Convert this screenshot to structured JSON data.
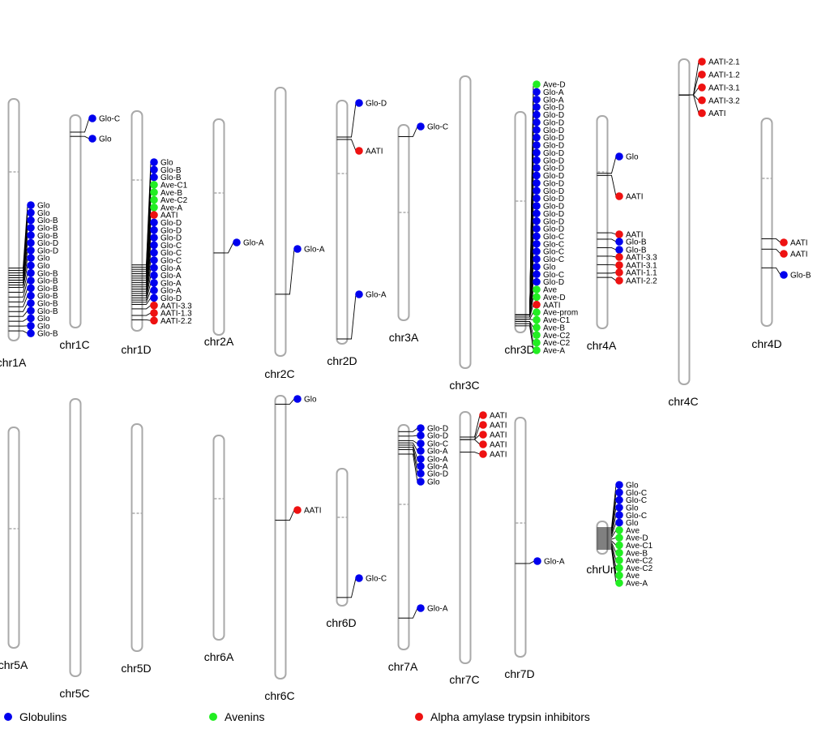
{
  "figure": {
    "palette": {
      "Glo": "#0000ee",
      "Ave": "#22ee22",
      "AATI": "#ee1111",
      "chromosome_outline": "#a9a9a9"
    },
    "legend": [
      {
        "label": "Globulins",
        "color": "#0000ee"
      },
      {
        "label": "Avenins",
        "color": "#22ee22"
      },
      {
        "label": "Alpha amylase trypsin inhibitors",
        "color": "#ee1111"
      }
    ],
    "chromosomes": [
      {
        "name": "chr1A",
        "row": 1,
        "genes": [
          [
            "Glo",
            "Glo",
            0.7
          ],
          [
            "Glo",
            "Glo",
            0.71
          ],
          [
            "Glo-B",
            "Glo",
            0.72
          ],
          [
            "Glo-B",
            "Glo",
            0.73
          ],
          [
            "Glo-B",
            "Glo",
            0.74
          ],
          [
            "Glo-D",
            "Glo",
            0.75
          ],
          [
            "Glo-D",
            "Glo",
            0.76
          ],
          [
            "Glo",
            "Glo",
            0.77
          ],
          [
            "Glo",
            "Glo",
            0.78
          ],
          [
            "Glo-B",
            "Glo",
            0.8
          ],
          [
            "Glo-B",
            "Glo",
            0.82
          ],
          [
            "Glo-B",
            "Glo",
            0.84
          ],
          [
            "Glo-B",
            "Glo",
            0.86
          ],
          [
            "Glo-B",
            "Glo",
            0.88
          ],
          [
            "Glo-B",
            "Glo",
            0.9
          ],
          [
            "Glo",
            "Glo",
            0.92
          ],
          [
            "Glo",
            "Glo",
            0.94
          ],
          [
            "Glo-B",
            "Glo",
            0.96
          ]
        ]
      },
      {
        "name": "chr1C",
        "row": 1,
        "genes": [
          [
            "Glo-C",
            "Glo",
            0.08
          ],
          [
            "Glo",
            "Glo",
            0.1
          ]
        ]
      },
      {
        "name": "chr1D",
        "row": 1,
        "genes": [
          [
            "Glo",
            "Glo",
            0.7
          ],
          [
            "Glo-B",
            "Glo",
            0.71
          ],
          [
            "Glo-B",
            "Glo",
            0.72
          ],
          [
            "Ave-C1",
            "Ave",
            0.73
          ],
          [
            "Ave-B",
            "Ave",
            0.74
          ],
          [
            "Ave-C2",
            "Ave",
            0.75
          ],
          [
            "Ave-A",
            "Ave",
            0.76
          ],
          [
            "AATI",
            "AATI",
            0.77
          ],
          [
            "Glo-D",
            "Glo",
            0.78
          ],
          [
            "Glo-D",
            "Glo",
            0.79
          ],
          [
            "Glo-D",
            "Glo",
            0.8
          ],
          [
            "Glo-C",
            "Glo",
            0.81
          ],
          [
            "Glo-C",
            "Glo",
            0.82
          ],
          [
            "Glo-C",
            "Glo",
            0.83
          ],
          [
            "Glo-A",
            "Glo",
            0.84
          ],
          [
            "Glo-A",
            "Glo",
            0.85
          ],
          [
            "Glo-A",
            "Glo",
            0.86
          ],
          [
            "Glo-A",
            "Glo",
            0.87
          ],
          [
            "Glo-D",
            "Glo",
            0.88
          ],
          [
            "AATI-3.3",
            "AATI",
            0.9
          ],
          [
            "AATI-1.3",
            "AATI",
            0.93
          ],
          [
            "AATI-2.2",
            "AATI",
            0.95
          ]
        ]
      },
      {
        "name": "chr2A",
        "row": 1,
        "genes": [
          [
            "Glo-A",
            "Glo",
            0.62
          ]
        ]
      },
      {
        "name": "chr2C",
        "row": 1,
        "genes": [
          [
            "Glo-A",
            "Glo",
            0.77
          ]
        ]
      },
      {
        "name": "chr2D",
        "row": 1,
        "genes": [
          [
            "Glo-D",
            "Glo",
            0.15
          ],
          [
            "AATI",
            "AATI",
            0.16
          ],
          [
            "Glo-A",
            "Glo",
            0.98
          ]
        ]
      },
      {
        "name": "chr3A",
        "row": 1,
        "genes": [
          [
            "Glo-C",
            "Glo",
            0.06
          ]
        ]
      },
      {
        "name": "chr3C",
        "row": 1,
        "genes": []
      },
      {
        "name": "chr3D",
        "row": 1,
        "genes": [
          [
            "Ave-D",
            "Ave",
            0.92
          ],
          [
            "Glo-A",
            "Glo",
            0.92
          ],
          [
            "Glo-A",
            "Glo",
            0.92
          ],
          [
            "Glo-D",
            "Glo",
            0.92
          ],
          [
            "Glo-D",
            "Glo",
            0.92
          ],
          [
            "Glo-D",
            "Glo",
            0.92
          ],
          [
            "Glo-D",
            "Glo",
            0.92
          ],
          [
            "Glo-D",
            "Glo",
            0.92
          ],
          [
            "Glo-D",
            "Glo",
            0.92
          ],
          [
            "Glo-D",
            "Glo",
            0.92
          ],
          [
            "Glo-D",
            "Glo",
            0.92
          ],
          [
            "Glo-D",
            "Glo",
            0.92
          ],
          [
            "Glo-D",
            "Glo",
            0.92
          ],
          [
            "Glo-D",
            "Glo",
            0.92
          ],
          [
            "Glo-D",
            "Glo",
            0.92
          ],
          [
            "Glo-D",
            "Glo",
            0.92
          ],
          [
            "Glo-D",
            "Glo",
            0.92
          ],
          [
            "Glo-D",
            "Glo",
            0.92
          ],
          [
            "Glo-D",
            "Glo",
            0.92
          ],
          [
            "Glo-D",
            "Glo",
            0.92
          ],
          [
            "Glo-C",
            "Glo",
            0.92
          ],
          [
            "Glo-C",
            "Glo",
            0.92
          ],
          [
            "Glo-C",
            "Glo",
            0.92
          ],
          [
            "Glo-C",
            "Glo",
            0.92
          ],
          [
            "Glo",
            "Glo",
            0.92
          ],
          [
            "Glo-C",
            "Glo",
            0.92
          ],
          [
            "Glo-D",
            "Glo",
            0.92
          ],
          [
            "Ave",
            "Ave",
            0.93
          ],
          [
            "Ave-D",
            "Ave",
            0.93
          ],
          [
            "AATI",
            "AATI",
            0.93
          ],
          [
            "Ave-prom",
            "Ave",
            0.94
          ],
          [
            "Ave-C1",
            "Ave",
            0.94
          ],
          [
            "Ave-B",
            "Ave",
            0.95
          ],
          [
            "Ave-C2",
            "Ave",
            0.95
          ],
          [
            "Ave-C2",
            "Ave",
            0.96
          ],
          [
            "Ave-A",
            "Ave",
            0.97
          ]
        ]
      },
      {
        "name": "chr4A",
        "row": 1,
        "genes": [
          [
            "Glo",
            "Glo",
            0.27
          ],
          [
            "AATI",
            "AATI",
            0.28
          ],
          [
            "AATI",
            "AATI",
            0.55
          ],
          [
            "Glo-B",
            "Glo",
            0.58
          ],
          [
            "Glo-B",
            "Glo",
            0.62
          ],
          [
            "AATI-3.3",
            "AATI",
            0.66
          ],
          [
            "AATI-3.1",
            "AATI",
            0.7
          ],
          [
            "AATI-1.1",
            "AATI",
            0.74
          ],
          [
            "AATI-2.2",
            "AATI",
            0.76
          ]
        ]
      },
      {
        "name": "chr4C",
        "row": 1,
        "genes": [
          [
            "AATI-2.1",
            "AATI",
            0.11
          ],
          [
            "AATI-1.2",
            "AATI",
            0.11
          ],
          [
            "AATI-3.1",
            "AATI",
            0.11
          ],
          [
            "AATI-3.2",
            "AATI",
            0.11
          ],
          [
            "AATI",
            "AATI",
            0.11
          ]
        ]
      },
      {
        "name": "chr4D",
        "row": 1,
        "genes": [
          [
            "AATI",
            "AATI",
            0.58
          ],
          [
            "AATI",
            "AATI",
            0.63
          ],
          [
            "Glo-B",
            "Glo",
            0.72
          ]
        ]
      },
      {
        "name": "chr5A",
        "row": 2,
        "genes": []
      },
      {
        "name": "chr5C",
        "row": 2,
        "genes": []
      },
      {
        "name": "chr5D",
        "row": 2,
        "genes": []
      },
      {
        "name": "chr6A",
        "row": 2,
        "genes": []
      },
      {
        "name": "chr6C",
        "row": 2,
        "genes": [
          [
            "Glo",
            "Glo",
            0.03
          ],
          [
            "AATI",
            "AATI",
            0.44
          ]
        ]
      },
      {
        "name": "chr6D",
        "row": 2,
        "genes": [
          [
            "Glo-C",
            "Glo",
            0.94
          ]
        ]
      },
      {
        "name": "chr7A",
        "row": 2,
        "genes": [
          [
            "Glo-D",
            "Glo",
            0.03
          ],
          [
            "Glo-D",
            "Glo",
            0.05
          ],
          [
            "Glo-C",
            "Glo",
            0.07
          ],
          [
            "Glo-A",
            "Glo",
            0.08
          ],
          [
            "Glo-A",
            "Glo",
            0.09
          ],
          [
            "Glo-A",
            "Glo",
            0.1
          ],
          [
            "Glo-D",
            "Glo",
            0.11
          ],
          [
            "Glo",
            "Glo",
            0.13
          ],
          [
            "Glo-A",
            "Glo",
            0.86
          ]
        ]
      },
      {
        "name": "chr7C",
        "row": 2,
        "genes": [
          [
            "AATI",
            "AATI",
            0.1
          ],
          [
            "AATI",
            "AATI",
            0.11
          ],
          [
            "AATI",
            "AATI",
            0.11
          ],
          [
            "AATI",
            "AATI",
            0.11
          ],
          [
            "AATI",
            "AATI",
            0.16
          ]
        ]
      },
      {
        "name": "chr7D",
        "row": 2,
        "genes": [
          [
            "Glo-A",
            "Glo",
            0.61
          ]
        ]
      },
      {
        "name": "chrUn",
        "row": 2,
        "genes": [
          [
            "Glo",
            "Glo",
            0.2
          ],
          [
            "Glo-C",
            "Glo",
            0.25
          ],
          [
            "Glo-C",
            "Glo",
            0.3
          ],
          [
            "Glo",
            "Glo",
            0.35
          ],
          [
            "Glo-C",
            "Glo",
            0.4
          ],
          [
            "Glo",
            "Glo",
            0.45
          ],
          [
            "Ave",
            "Ave",
            0.5
          ],
          [
            "Ave-D",
            "Ave",
            0.55
          ],
          [
            "Ave-C1",
            "Ave",
            0.6
          ],
          [
            "Ave-B",
            "Ave",
            0.65
          ],
          [
            "Ave-C2",
            "Ave",
            0.7
          ],
          [
            "Ave-C2",
            "Ave",
            0.75
          ],
          [
            "Ave",
            "Ave",
            0.8
          ],
          [
            "Ave-A",
            "Ave",
            0.85
          ]
        ]
      }
    ]
  }
}
